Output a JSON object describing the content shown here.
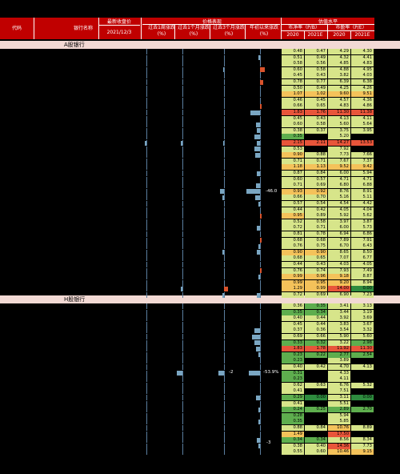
{
  "header": {
    "code": "代码",
    "name": "银行名称",
    "close_group": "最新收盘价",
    "close_date": "2021/12/3",
    "perf_group": "价格表现",
    "chg_1w": "过去1周涨跌",
    "chg_1m": "过去1个月涨跌",
    "chg_3m": "过去3个月涨跌",
    "chg_ytd": "年初以来涨跌",
    "pct": "(%)",
    "val_group": "估值水平",
    "pb": "市净率（P/B）",
    "pe": "市盈率（P/E）",
    "y2020": "2020",
    "y2021e": "2021E"
  },
  "sections": {
    "a": "A股银行",
    "h": "H股银行"
  },
  "labels": {
    "a_ytd_neg": "-46.0",
    "h_1m_neg": "-2",
    "h_ytd_neg": "-53.9%",
    "h_3m_neg": "-3"
  },
  "colors": {
    "header": "#c00000",
    "section": "#f2d9d4",
    "pos_bar": "#d9532c",
    "neg_bar": "#7aa6c2"
  },
  "a_rows": [
    {
      "pb20": "0.48",
      "pb21": "0.47",
      "pe20": "4.29",
      "pe21": "4.30",
      "w": 0,
      "m": 0,
      "q": 0,
      "y": 0
    },
    {
      "pb20": "0.51",
      "pb21": "0.49",
      "pe20": "4.32",
      "pe21": "4.41",
      "w": 0,
      "m": 0,
      "q": 0,
      "y": -2
    },
    {
      "pb20": "0.58",
      "pb21": "0.56",
      "pe20": "4.85",
      "pe21": "4.83",
      "w": 0,
      "m": 0,
      "q": 0,
      "y": 0
    },
    {
      "pb20": "0.60",
      "pb21": "0.58",
      "pe20": "4.88",
      "pe21": "4.95",
      "w": 0,
      "m": 0,
      "q": -1,
      "y": 5
    },
    {
      "pb20": "0.45",
      "pb21": "0.43",
      "pe20": "3.82",
      "pe21": "4.03",
      "w": 0,
      "m": 0,
      "q": 0,
      "y": 0
    },
    {
      "pb20": "0.78",
      "pb21": "0.77",
      "pe20": "6.39",
      "pe21": "6.38",
      "w": 0,
      "m": 0,
      "q": 0,
      "y": 3
    },
    {
      "pb20": "0.50",
      "pb21": "0.49",
      "pe20": "4.25",
      "pe21": "4.26",
      "w": 0,
      "m": 0,
      "q": 0,
      "y": 0
    },
    {
      "pb20": "1.07",
      "pb21": "1.02",
      "pe20": "9.60",
      "pe21": "9.51",
      "w": 0,
      "m": 0,
      "q": 0,
      "y": 0
    },
    {
      "pb20": "0.46",
      "pb21": "0.45",
      "pe20": "4.57",
      "pe21": "4.36",
      "w": 0,
      "m": 0,
      "q": 0,
      "y": 0
    },
    {
      "pb20": "0.66",
      "pb21": "0.65",
      "pe20": "4.83",
      "pe21": "4.86",
      "w": 0,
      "m": 0,
      "q": 0,
      "y": 2
    },
    {
      "pb20": "1.83",
      "pb21": "1.76",
      "pe20": "11.30",
      "pe21": "11.38",
      "w": 0,
      "m": 0,
      "q": 0,
      "y": -10
    },
    {
      "pb20": "0.45",
      "pb21": "0.43",
      "pe20": "4.13",
      "pe21": "4.11",
      "w": 0,
      "m": 0,
      "q": 0,
      "y": 0
    },
    {
      "pb20": "0.60",
      "pb21": "0.58",
      "pe20": "5.60",
      "pe21": "5.64",
      "w": 0,
      "m": 0,
      "q": 0,
      "y": -4
    },
    {
      "pb20": "0.38",
      "pb21": "0.37",
      "pe20": "3.75",
      "pe21": "3.95",
      "w": 0,
      "m": 0,
      "q": 0,
      "y": -3
    },
    {
      "pb20": "0.35",
      "pb21": "",
      "pe20": "5.20",
      "pe21": "",
      "w": 0,
      "m": 0,
      "q": 0,
      "y": -6
    },
    {
      "pb20": "2.15",
      "pb21": "2.11",
      "pe20": "14.27",
      "pe21": "13.53",
      "w": -2,
      "m": -2,
      "q": -1,
      "y": -3
    },
    {
      "pb20": "0.53",
      "pb21": "",
      "pe20": "7.92",
      "pe21": "",
      "w": 0,
      "m": 0,
      "q": 0,
      "y": -6
    },
    {
      "pb20": "0.90",
      "pb21": "0.88",
      "pe20": "7.73",
      "pe21": "7.66",
      "w": 0,
      "m": 0,
      "q": 0,
      "y": -5
    },
    {
      "pb20": "0.71",
      "pb21": "0.71",
      "pe20": "7.67",
      "pe21": "7.37",
      "w": 0,
      "m": 0,
      "q": 0,
      "y": 0
    },
    {
      "pb20": "1.18",
      "pb21": "1.13",
      "pe20": "9.52",
      "pe21": "9.42",
      "w": 0,
      "m": 0,
      "q": 0,
      "y": 0
    },
    {
      "pb20": "0.87",
      "pb21": "0.84",
      "pe20": "6.00",
      "pe21": "5.94",
      "w": 0,
      "m": 0,
      "q": 0,
      "y": -3
    },
    {
      "pb20": "0.60",
      "pb21": "0.57",
      "pe20": "4.71",
      "pe21": "4.71",
      "w": 0,
      "m": 0,
      "q": 0,
      "y": 0
    },
    {
      "pb20": "0.71",
      "pb21": "0.69",
      "pe20": "6.80",
      "pe21": "6.88",
      "w": 0,
      "m": 0,
      "q": 0,
      "y": -4
    },
    {
      "pb20": "0.93",
      "pb21": "0.92",
      "pe20": "8.76",
      "pe21": "8.91",
      "w": 0,
      "m": 0,
      "q": -4,
      "y": -14
    },
    {
      "pb20": "0.66",
      "pb21": "0.70",
      "pe20": "5.16",
      "pe21": "5.11",
      "w": 0,
      "m": 0,
      "q": -2,
      "y": -5
    },
    {
      "pb20": "0.57",
      "pb21": "0.54",
      "pe20": "4.54",
      "pe21": "4.42",
      "w": 0,
      "m": 0,
      "q": 0,
      "y": -2
    },
    {
      "pb20": "0.44",
      "pb21": "0.42",
      "pe20": "4.05",
      "pe21": "4.04",
      "w": 0,
      "m": 0,
      "q": 0,
      "y": 0
    },
    {
      "pb20": "0.95",
      "pb21": "0.89",
      "pe20": "5.92",
      "pe21": "5.62",
      "w": 0,
      "m": 0,
      "q": 0,
      "y": 2
    },
    {
      "pb20": "0.52",
      "pb21": "0.58",
      "pe20": "3.97",
      "pe21": "3.87",
      "w": 0,
      "m": 0,
      "q": 0,
      "y": 0
    },
    {
      "pb20": "0.72",
      "pb21": "0.71",
      "pe20": "6.00",
      "pe21": "5.73",
      "w": 0,
      "m": 0,
      "q": 0,
      "y": -3
    },
    {
      "pb20": "0.81",
      "pb21": "0.78",
      "pe20": "6.94",
      "pe21": "6.86",
      "w": 0,
      "m": 0,
      "q": 0,
      "y": 0
    },
    {
      "pb20": "0.68",
      "pb21": "0.68",
      "pe20": "7.89",
      "pe21": "7.91",
      "w": 0,
      "m": 0,
      "q": 0,
      "y": 2
    },
    {
      "pb20": "0.76",
      "pb21": "0.75",
      "pe20": "6.70",
      "pe21": "6.43",
      "w": 0,
      "m": 0,
      "q": 0,
      "y": -2
    },
    {
      "pb20": "0.90",
      "pb21": "0.90",
      "pe20": "8.65",
      "pe21": "8.50",
      "w": 0,
      "m": 0,
      "q": -2,
      "y": -3
    },
    {
      "pb20": "0.68",
      "pb21": "0.65",
      "pe20": "7.07",
      "pe21": "6.77",
      "w": 0,
      "m": 0,
      "q": 0,
      "y": 0
    },
    {
      "pb20": "0.44",
      "pb21": "0.43",
      "pe20": "4.03",
      "pe21": "4.05",
      "w": 0,
      "m": 0,
      "q": 0,
      "y": 0
    },
    {
      "pb20": "0.76",
      "pb21": "0.74",
      "pe20": "7.93",
      "pe21": "7.49",
      "w": 0,
      "m": 0,
      "q": 0,
      "y": 2
    },
    {
      "pb20": "0.99",
      "pb21": "0.96",
      "pe20": "9.18",
      "pe21": "8.87",
      "w": 0,
      "m": 0,
      "q": 0,
      "y": -2
    },
    {
      "pb20": "0.99",
      "pb21": "0.95",
      "pe20": "9.20",
      "pe21": "8.94",
      "w": 0,
      "m": 0,
      "q": 0,
      "y": 0
    },
    {
      "pb20": "1.29",
      "pb21": "0.99",
      "pe20": "14.00",
      "pe21": "0.00",
      "w": 0,
      "m": -2,
      "q": 4,
      "y": 0
    },
    {
      "pb20": "0.72",
      "pb21": "0.69",
      "pe20": "6.90",
      "pe21": "7.23",
      "w": 0,
      "m": 0,
      "q": -2,
      "y": -3
    }
  ],
  "h_rows": [
    {
      "pb20": "0.36",
      "pb21": "0.35",
      "pe20": "3.41",
      "pe21": "3.13",
      "w": 0,
      "m": 0,
      "q": 0,
      "y": 0
    },
    {
      "pb20": "0.35",
      "pb21": "0.34",
      "pe20": "3.44",
      "pe21": "3.19",
      "w": 0,
      "m": 0,
      "q": 0,
      "y": 0
    },
    {
      "pb20": "0.40",
      "pb21": "0.44",
      "pe20": "3.92",
      "pe21": "3.69",
      "w": 0,
      "m": 0,
      "q": 0,
      "y": 0
    },
    {
      "pb20": "0.45",
      "pb21": "0.44",
      "pe20": "3.83",
      "pe21": "3.67",
      "w": 0,
      "m": 0,
      "q": 0,
      "y": 0
    },
    {
      "pb20": "0.37",
      "pb21": "0.36",
      "pe20": "3.54",
      "pe21": "3.32",
      "w": 0,
      "m": 0,
      "q": 0,
      "y": -6
    },
    {
      "pb20": "0.69",
      "pb21": "0.66",
      "pe20": "5.90",
      "pe21": "5.60",
      "w": 0,
      "m": 0,
      "q": 0,
      "y": -8
    },
    {
      "pb20": "0.33",
      "pb21": "0.32",
      "pe20": "3.22",
      "pe21": "2.98",
      "w": 0,
      "m": 0,
      "q": 0,
      "y": -6
    },
    {
      "pb20": "1.83",
      "pb21": "1.78",
      "pe20": "11.92",
      "pe21": "11.30",
      "w": 0,
      "m": 0,
      "q": 0,
      "y": -4
    },
    {
      "pb20": "0.23",
      "pb21": "0.22",
      "pe20": "2.77",
      "pe21": "2.54",
      "w": 0,
      "m": 0,
      "q": 0,
      "y": -2
    },
    {
      "pb20": "0.23",
      "pb21": "",
      "pe20": "3.89",
      "pe21": "",
      "w": 0,
      "m": 0,
      "q": 0,
      "y": 0
    },
    {
      "pb20": "0.40",
      "pb21": "0.42",
      "pe20": "4.70",
      "pe21": "4.13",
      "w": 0,
      "m": 0,
      "q": 0,
      "y": 0
    },
    {
      "pb20": "0.31",
      "pb21": "",
      "pe20": "4.33",
      "pe21": "",
      "w": 0,
      "m": -6,
      "q": -6,
      "y": -12
    },
    {
      "pb20": "0.23",
      "pb21": "",
      "pe20": "4.11",
      "pe21": "",
      "w": 0,
      "m": 0,
      "q": 0,
      "y": 0
    },
    {
      "pb20": "0.62",
      "pb21": "0.63",
      "pe20": "6.76",
      "pe21": "5.32",
      "w": 0,
      "m": 0,
      "q": 0,
      "y": 0
    },
    {
      "pb20": "0.41",
      "pb21": "",
      "pe20": "7.51",
      "pe21": "",
      "w": 0,
      "m": 0,
      "q": 0,
      "y": 0
    },
    {
      "pb20": "0.29",
      "pb21": "0.00",
      "pe20": "3.11",
      "pe21": "0.00",
      "w": 0,
      "m": 0,
      "q": 0,
      "y": -4
    },
    {
      "pb20": "0.41",
      "pb21": "",
      "pe20": "5.51",
      "pe21": "",
      "w": 0,
      "m": 0,
      "q": 0,
      "y": 0
    },
    {
      "pb20": "0.24",
      "pb21": "0.25",
      "pe20": "2.89",
      "pe21": "2.70",
      "w": 0,
      "m": 0,
      "q": 0,
      "y": -2
    },
    {
      "pb20": "0.28",
      "pb21": "",
      "pe20": "5.94",
      "pe21": "",
      "w": 0,
      "m": 0,
      "q": 0,
      "y": 0
    },
    {
      "pb20": "0.35",
      "pb21": "",
      "pe20": "5.85",
      "pe21": "",
      "w": 0,
      "m": 0,
      "q": 0,
      "y": -2
    },
    {
      "pb20": "0.88",
      "pb21": "0.84",
      "pe20": "10.76",
      "pe21": "8.89",
      "w": 0,
      "m": 0,
      "q": 0,
      "y": 0
    },
    {
      "pb20": "1.49",
      "pb21": "",
      "pe20": "17.50",
      "pe21": "",
      "w": 0,
      "m": 0,
      "q": 0,
      "y": 0
    },
    {
      "pb20": "0.34",
      "pb21": "0.34",
      "pe20": "8.56",
      "pe21": "8.34",
      "w": 0,
      "m": 0,
      "q": 0,
      "y": -3
    },
    {
      "pb20": "0.38",
      "pb21": "0.40",
      "pe20": "14.36",
      "pe21": "7.73",
      "w": 0,
      "m": 0,
      "q": 0,
      "y": -2
    },
    {
      "pb20": "0.55",
      "pb21": "0.60",
      "pe20": "10.46",
      "pe21": "9.15",
      "w": 0,
      "m": 0,
      "q": 0,
      "y": 0
    }
  ]
}
